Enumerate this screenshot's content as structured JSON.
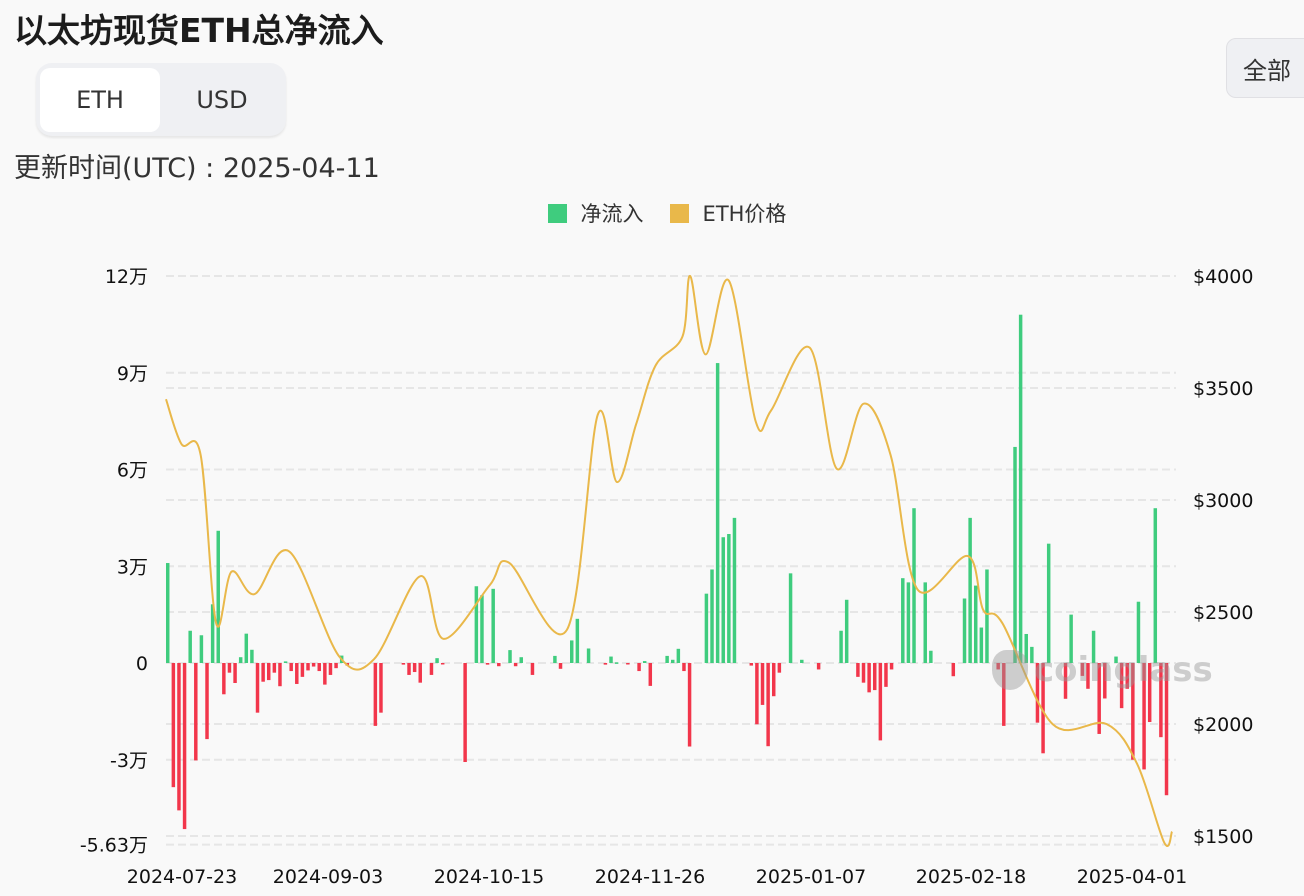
{
  "header": {
    "title": "以太坊现货ETH总净流入",
    "unit_toggle": {
      "options": [
        "ETH",
        "USD"
      ],
      "selected": "ETH"
    },
    "updated_label": "更新时间(UTC) : 2025-04-11",
    "range_button": "全部"
  },
  "legend": [
    {
      "label": "净流入",
      "color": "#3fcc7e"
    },
    {
      "label": "ETH价格",
      "color": "#e9b84a"
    }
  ],
  "colors": {
    "positive": "#3fcc7e",
    "negative": "#f2364b",
    "price": "#e9b84a",
    "grid": "#e6e6e6"
  },
  "watermark": "coinglass",
  "chart_data": {
    "type": "bar+line",
    "title": "以太坊现货ETH总净流入",
    "left_axis": {
      "label": "净流入 (ETH)",
      "ticks": [
        "12万",
        "9万",
        "6万",
        "3万",
        "0",
        "-3万",
        "-5.63万"
      ],
      "tick_values": [
        120000,
        90000,
        60000,
        30000,
        0,
        -30000,
        -56300
      ],
      "range": [
        -56300,
        120000
      ]
    },
    "right_axis": {
      "label": "ETH价格 (USD)",
      "ticks": [
        "$4000",
        "$3500",
        "$3000",
        "$2500",
        "$2000",
        "$1500"
      ],
      "tick_values": [
        4000,
        3500,
        3000,
        2500,
        2000,
        1500
      ],
      "range": [
        1450,
        4000
      ]
    },
    "x_ticks": [
      "2024-07-23",
      "2024-09-03",
      "2024-10-15",
      "2024-11-26",
      "2025-01-07",
      "2025-02-18",
      "2025-04-01"
    ],
    "x_range": [
      "2024-07-23",
      "2025-04-10"
    ],
    "legend_position": "top",
    "grid": true,
    "series": [
      {
        "name": "净流入",
        "type": "bar",
        "unit": "ETH",
        "values": [
          31000,
          -38500,
          -45700,
          -51500,
          10000,
          -30200,
          8600,
          -23600,
          18200,
          41000,
          -9700,
          -3000,
          -6200,
          1800,
          9100,
          4100,
          -15400,
          -5800,
          -5300,
          -3000,
          -7200,
          500,
          -2500,
          -6500,
          -4300,
          -2300,
          -1100,
          -2500,
          -6700,
          -3700,
          -1600,
          2300,
          -800,
          0,
          0,
          0,
          0,
          -19500,
          -15400,
          0,
          0,
          0,
          -500,
          -3700,
          -2800,
          -6100,
          0,
          -3700,
          1500,
          -300,
          0,
          0,
          0,
          -30700,
          0,
          23800,
          21000,
          -500,
          23000,
          -1000,
          0,
          4000,
          -1000,
          1800,
          0,
          -3700,
          0,
          0,
          0,
          2200,
          -1800,
          0,
          7000,
          13700,
          0,
          4500,
          0,
          0,
          -500,
          2000,
          200,
          0,
          -300,
          0,
          -2500,
          600,
          -7100,
          0,
          0,
          2200,
          1000,
          4400,
          -2500,
          -25900,
          0,
          0,
          21500,
          29000,
          93000,
          39000,
          40000,
          45000,
          0,
          0,
          -800,
          -19000,
          -13000,
          -25800,
          -10300,
          -3000,
          0,
          27800,
          0,
          1000,
          0,
          0,
          -2000,
          0,
          0,
          0,
          10000,
          19600,
          0,
          -4300,
          -6100,
          -9100,
          -8400,
          -24000,
          -7400,
          -2000,
          0,
          26300,
          25000,
          48000,
          0,
          25000,
          3800,
          0,
          0,
          0,
          -4100,
          0,
          20000,
          45000,
          24000,
          11000,
          29000,
          0,
          -2000,
          -19500,
          0,
          67000,
          108000,
          9000,
          5000,
          -18500,
          -28000,
          37000,
          0,
          0,
          -11100,
          15000,
          0,
          -4000,
          -8000,
          10000,
          -22000,
          -11000,
          0,
          2000,
          -14000,
          -8000,
          -30000,
          19000,
          -33000,
          -18300,
          48000,
          -23000,
          -41000,
          0
        ],
        "note": "approximate daily values read from pixel heights"
      },
      {
        "name": "ETH价格",
        "type": "line",
        "unit": "USD",
        "points_sampled": [
          {
            "date": "2024-07-23",
            "value": 3450
          },
          {
            "date": "2024-07-27",
            "value": 3250
          },
          {
            "date": "2024-08-01",
            "value": 3200
          },
          {
            "date": "2024-08-05",
            "value": 2450
          },
          {
            "date": "2024-08-09",
            "value": 2680
          },
          {
            "date": "2024-08-15",
            "value": 2580
          },
          {
            "date": "2024-08-24",
            "value": 2770
          },
          {
            "date": "2024-09-06",
            "value": 2300
          },
          {
            "date": "2024-09-15",
            "value": 2290
          },
          {
            "date": "2024-09-27",
            "value": 2660
          },
          {
            "date": "2024-10-03",
            "value": 2380
          },
          {
            "date": "2024-10-15",
            "value": 2620
          },
          {
            "date": "2024-10-20",
            "value": 2720
          },
          {
            "date": "2024-11-04",
            "value": 2420
          },
          {
            "date": "2024-11-12",
            "value": 3380
          },
          {
            "date": "2024-11-17",
            "value": 3080
          },
          {
            "date": "2024-11-22",
            "value": 3340
          },
          {
            "date": "2024-11-27",
            "value": 3600
          },
          {
            "date": "2024-12-04",
            "value": 3730
          },
          {
            "date": "2024-12-06",
            "value": 4000
          },
          {
            "date": "2024-12-10",
            "value": 3650
          },
          {
            "date": "2024-12-16",
            "value": 3980
          },
          {
            "date": "2024-12-23",
            "value": 3350
          },
          {
            "date": "2024-12-27",
            "value": 3400
          },
          {
            "date": "2025-01-06",
            "value": 3680
          },
          {
            "date": "2025-01-13",
            "value": 3140
          },
          {
            "date": "2025-01-20",
            "value": 3430
          },
          {
            "date": "2025-01-27",
            "value": 3200
          },
          {
            "date": "2025-02-03",
            "value": 2600
          },
          {
            "date": "2025-02-16",
            "value": 2750
          },
          {
            "date": "2025-02-20",
            "value": 2510
          },
          {
            "date": "2025-02-25",
            "value": 2450
          },
          {
            "date": "2025-03-10",
            "value": 2000
          },
          {
            "date": "2025-03-24",
            "value": 2000
          },
          {
            "date": "2025-04-01",
            "value": 1820
          },
          {
            "date": "2025-04-08",
            "value": 1470
          },
          {
            "date": "2025-04-10",
            "value": 1520
          }
        ]
      }
    ]
  }
}
